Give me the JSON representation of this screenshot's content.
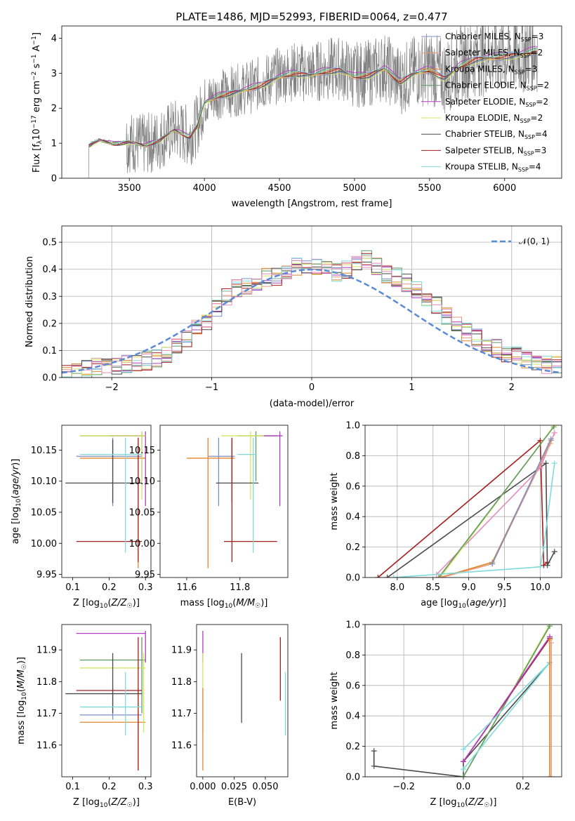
{
  "figure_title": "PLATE=1486, MJD=52993, FIBERID=0064, z=0.477",
  "model_colors": {
    "Chabrier MILES": "#7b8fc6",
    "Salpeter MILES": "#e99a7f",
    "Kroupa MILES": "#e0862c",
    "Chabrier ELODIE": "#5e9a62",
    "Salpeter ELODIE": "#b23cc0",
    "Kroupa ELODIE": "#d7e363",
    "Chabrier STELIB": "#4a4a4a",
    "Salpeter STELIB": "#a61d1d",
    "Kroupa STELIB": "#80dada",
    "pink": "#e58bbd",
    "data": "#808080",
    "normal": "#5b8ad6"
  },
  "chart_data": [
    {
      "id": "spectrum",
      "type": "line",
      "title": "PLATE=1486, MJD=52993, FIBERID=0064, z=0.477",
      "xlabel": "wavelength [Angstrom, rest frame]",
      "ylabel": "Flux [f_λ 10^-17 erg cm^-2 s^-1 A^-1]",
      "xlim": [
        3050,
        6380
      ],
      "ylim": [
        0,
        4.35
      ],
      "xticks": [
        3500,
        4000,
        4500,
        5000,
        5500,
        6000
      ],
      "yticks": [
        0,
        1,
        2,
        3,
        4
      ],
      "legend_position": "top-right",
      "continuum": {
        "x": [
          3200,
          3230,
          3300,
          3400,
          3500,
          3600,
          3700,
          3800,
          3900,
          3950,
          4000,
          4100,
          4200,
          4300,
          4400,
          4500,
          4600,
          4700,
          4800,
          4900,
          5000,
          5100,
          5200,
          5300,
          5400,
          5500,
          5600,
          5700,
          5800,
          5900,
          6000,
          6100,
          6200
        ],
        "y": [
          0,
          0.95,
          1.1,
          1.0,
          1.05,
          0.95,
          1.1,
          1.4,
          1.2,
          1.5,
          2.2,
          2.4,
          2.5,
          2.6,
          2.75,
          2.95,
          3.05,
          3.0,
          3.1,
          3.15,
          2.95,
          3.0,
          3.2,
          2.8,
          3.05,
          3.15,
          2.9,
          3.25,
          3.45,
          3.5,
          3.55,
          3.6,
          3.7
        ]
      },
      "series": [
        {
          "name": "Chabrier MILES, N_SSP=3"
        },
        {
          "name": "Salpeter MILES, N_SSP=2"
        },
        {
          "name": "Kroupa MILES, N_SSP=3"
        },
        {
          "name": "Chabrier ELODIE, N_SSP=2"
        },
        {
          "name": "Salpeter ELODIE, N_SSP=2"
        },
        {
          "name": "Kroupa ELODIE, N_SSP=2"
        },
        {
          "name": "Chabrier STELIB, N_SSP=4"
        },
        {
          "name": "Salpeter STELIB, N_SSP=3"
        },
        {
          "name": "Kroupa STELIB, N_SSP=4"
        }
      ]
    },
    {
      "id": "residuals",
      "type": "line",
      "xlabel": "(data-model)/error",
      "ylabel": "Normed distribution",
      "xlim": [
        -2.5,
        2.5
      ],
      "ylim": [
        0,
        0.56
      ],
      "xticks": [
        -2,
        -1,
        0,
        1,
        2
      ],
      "yticks": [
        0.0,
        0.1,
        0.2,
        0.3,
        0.4,
        0.5
      ],
      "legend_position": "top-right",
      "normal_curve": {
        "name": "N(0,1)",
        "mean": 0,
        "sd": 1
      },
      "bin_edges_start": -2.5,
      "bin_width": 0.1,
      "histogram_base": [
        0.01,
        0.02,
        0.03,
        0.04,
        0.04,
        0.04,
        0.05,
        0.05,
        0.06,
        0.07,
        0.08,
        0.11,
        0.14,
        0.18,
        0.21,
        0.26,
        0.3,
        0.33,
        0.34,
        0.35,
        0.37,
        0.37,
        0.38,
        0.41,
        0.41,
        0.41,
        0.4,
        0.39,
        0.4,
        0.42,
        0.44,
        0.41,
        0.38,
        0.37,
        0.35,
        0.33,
        0.3,
        0.27,
        0.23,
        0.2,
        0.17,
        0.15,
        0.13,
        0.11,
        0.09,
        0.08,
        0.07,
        0.06,
        0.05,
        0.05
      ]
    },
    {
      "id": "age-vs-Z",
      "type": "scatter",
      "xlabel": "Z [log10(Z/Z☉)]",
      "ylabel": "age  [log10(age/yr)]",
      "xlim": [
        0.07,
        0.315
      ],
      "ylim": [
        9.945,
        10.19
      ],
      "xticks": [
        0.1,
        0.2,
        0.3
      ],
      "yticks": [
        9.95,
        10.0,
        10.05,
        10.1,
        10.15
      ],
      "points": [
        {
          "model": "Chabrier MILES",
          "x": 0.21,
          "y": 10.14,
          "xerr": [
            0.11,
            0.29
          ],
          "yerr": [
            10.06,
            10.17
          ]
        },
        {
          "model": "Kroupa MILES",
          "x": 0.28,
          "y": 10.137,
          "xerr": [
            0.12,
            0.3
          ],
          "yerr": [
            9.96,
            10.17
          ]
        },
        {
          "model": "Chabrier ELODIE",
          "x": 0.29,
          "y": 10.173,
          "xerr": [
            0.12,
            0.3
          ],
          "yerr": [
            10.1,
            10.18
          ]
        },
        {
          "model": "Salpeter ELODIE",
          "x": 0.3,
          "y": 10.173,
          "xerr": [
            0.2,
            0.3
          ],
          "yerr": [
            10.06,
            10.18
          ]
        },
        {
          "model": "Kroupa ELODIE",
          "x": 0.29,
          "y": 10.173,
          "xerr": [
            0.12,
            0.3
          ],
          "yerr": [
            10.07,
            10.18
          ]
        },
        {
          "model": "Chabrier STELIB",
          "x": 0.21,
          "y": 10.097,
          "xerr": [
            0.08,
            0.29
          ],
          "yerr": [
            10.065,
            10.167
          ]
        },
        {
          "model": "Salpeter STELIB",
          "x": 0.28,
          "y": 10.003,
          "xerr": [
            0.11,
            0.29
          ],
          "yerr": [
            9.97,
            10.17
          ]
        },
        {
          "model": "Kroupa STELIB",
          "x": 0.245,
          "y": 10.143,
          "xerr": [
            0.12,
            0.29
          ],
          "yerr": [
            9.985,
            10.17
          ]
        }
      ]
    },
    {
      "id": "age-vs-mass",
      "type": "scatter",
      "xlabel": "mass [log10(M/M☉)]",
      "ylabel": "",
      "xlim": [
        11.5,
        11.98
      ],
      "ylim": [
        9.945,
        10.19
      ],
      "xticks": [
        11.6,
        11.8
      ],
      "yticks": [
        9.95,
        10.0,
        10.05,
        10.1,
        10.15
      ],
      "points": [
        {
          "model": "Chabrier MILES",
          "x": 11.72,
          "y": 10.14,
          "xerr": [
            11.68,
            11.78
          ],
          "yerr": [
            10.06,
            10.17
          ]
        },
        {
          "model": "Kroupa MILES",
          "x": 11.68,
          "y": 10.137,
          "xerr": [
            11.6,
            11.78
          ],
          "yerr": [
            9.96,
            10.17
          ]
        },
        {
          "model": "Chabrier ELODIE",
          "x": 11.86,
          "y": 10.173,
          "xerr": [
            11.79,
            11.94
          ],
          "yerr": [
            10.1,
            10.18
          ]
        },
        {
          "model": "Salpeter ELODIE",
          "x": 11.95,
          "y": 10.173,
          "xerr": [
            11.88,
            11.96
          ],
          "yerr": [
            10.06,
            10.18
          ]
        },
        {
          "model": "Kroupa ELODIE",
          "x": 11.84,
          "y": 10.173,
          "xerr": [
            11.73,
            11.89
          ],
          "yerr": [
            10.07,
            10.18
          ]
        },
        {
          "model": "Chabrier STELIB",
          "x": 11.77,
          "y": 10.097,
          "xerr": [
            11.71,
            11.87
          ],
          "yerr": [
            10.065,
            10.167
          ]
        },
        {
          "model": "Salpeter STELIB",
          "x": 11.77,
          "y": 10.003,
          "xerr": [
            11.74,
            11.94
          ],
          "yerr": [
            9.97,
            10.17
          ]
        },
        {
          "model": "Kroupa STELIB",
          "x": 11.85,
          "y": 10.143,
          "xerr": [
            11.79,
            11.86
          ],
          "yerr": [
            9.985,
            10.17
          ]
        }
      ]
    },
    {
      "id": "massweight-vs-age",
      "type": "line",
      "xlabel": "age  [log10(age/yr)]",
      "ylabel": "mass weight",
      "xlim": [
        7.55,
        10.3
      ],
      "ylim": [
        0,
        1.0
      ],
      "xticks": [
        8.0,
        8.5,
        9.0,
        9.5,
        10.0
      ],
      "yticks": [
        0.0,
        0.2,
        0.4,
        0.6,
        0.8,
        1.0
      ],
      "series": [
        {
          "model": "Salpeter STELIB",
          "x": [
            7.73,
            10.0,
            10.05,
            10.1
          ],
          "y": [
            0.0,
            0.9,
            0.08,
            0.1
          ]
        },
        {
          "model": "Chabrier STELIB",
          "x": [
            7.86,
            10.08,
            10.1,
            10.2
          ],
          "y": [
            0.0,
            0.75,
            0.08,
            0.17
          ]
        },
        {
          "model": "pink",
          "x": [
            8.55,
            10.0,
            10.2
          ],
          "y": [
            0.02,
            0.72,
            0.95
          ]
        },
        {
          "model": "Kroupa ELODIE",
          "x": [
            8.6,
            10.2
          ],
          "y": [
            0.0,
            1.0
          ]
        },
        {
          "model": "Chabrier ELODIE",
          "x": [
            8.58,
            10.19
          ],
          "y": [
            0.0,
            0.99
          ]
        },
        {
          "model": "Kroupa MILES",
          "x": [
            8.6,
            9.33,
            10.15
          ],
          "y": [
            0.0,
            0.1,
            0.9
          ]
        },
        {
          "model": "Salpeter MILES",
          "x": [
            8.62,
            9.33,
            10.14
          ],
          "y": [
            0.0,
            0.09,
            0.88
          ]
        },
        {
          "model": "Chabrier MILES",
          "x": [
            9.33,
            10.15
          ],
          "y": [
            0.09,
            0.91
          ]
        },
        {
          "model": "Kroupa STELIB",
          "x": [
            7.95,
            10.0,
            10.05,
            10.2
          ],
          "y": [
            0.0,
            0.07,
            0.2,
            0.75
          ]
        }
      ]
    },
    {
      "id": "mass-vs-Z",
      "type": "scatter",
      "xlabel": "Z [log10(Z/Z☉)]",
      "ylabel": "mass [log10(M/M☉)]",
      "xlim": [
        0.07,
        0.315
      ],
      "ylim": [
        11.5,
        11.98
      ],
      "xticks": [
        0.1,
        0.2,
        0.3
      ],
      "yticks": [
        11.6,
        11.7,
        11.8,
        11.9
      ],
      "points": [
        {
          "model": "Chabrier MILES",
          "x": 0.21,
          "y": 11.695,
          "xerr": [
            0.12,
            0.29
          ],
          "yerr": [
            11.68,
            11.78
          ]
        },
        {
          "model": "Kroupa MILES",
          "x": 0.28,
          "y": 11.672,
          "xerr": [
            0.12,
            0.3
          ],
          "yerr": [
            11.52,
            11.78
          ]
        },
        {
          "model": "Chabrier ELODIE",
          "x": 0.29,
          "y": 11.868,
          "xerr": [
            0.12,
            0.3
          ],
          "yerr": [
            11.7,
            11.94
          ]
        },
        {
          "model": "Salpeter ELODIE",
          "x": 0.3,
          "y": 11.952,
          "xerr": [
            0.11,
            0.3
          ],
          "yerr": [
            11.86,
            11.96
          ]
        },
        {
          "model": "Kroupa ELODIE",
          "x": 0.295,
          "y": 11.843,
          "xerr": [
            0.12,
            0.3
          ],
          "yerr": [
            11.64,
            11.89
          ]
        },
        {
          "model": "Chabrier STELIB",
          "x": 0.21,
          "y": 11.762,
          "xerr": [
            0.08,
            0.29
          ],
          "yerr": [
            11.7,
            11.89
          ]
        },
        {
          "model": "Salpeter STELIB",
          "x": 0.28,
          "y": 11.772,
          "xerr": [
            0.11,
            0.29
          ],
          "yerr": [
            11.52,
            11.94
          ]
        },
        {
          "model": "Kroupa STELIB",
          "x": 0.245,
          "y": 11.72,
          "xerr": [
            0.12,
            0.29
          ],
          "yerr": [
            11.63,
            11.83
          ]
        }
      ]
    },
    {
      "id": "mass-vs-ebv",
      "type": "scatter",
      "xlabel": "E(B-V)",
      "ylabel": "",
      "xlim": [
        -0.005,
        0.068
      ],
      "ylim": [
        11.5,
        11.98
      ],
      "xticks": [
        0.0,
        0.025,
        0.05
      ],
      "yticks": [
        11.6,
        11.7,
        11.8,
        11.9
      ],
      "points": [
        {
          "model": "Salpeter ELODIE",
          "x": 0.0,
          "y": 11.952,
          "yerr": [
            11.86,
            11.96
          ]
        },
        {
          "model": "Kroupa ELODIE",
          "x": 0.0,
          "y": 11.843,
          "yerr": [
            11.64,
            11.89
          ]
        },
        {
          "model": "Kroupa MILES",
          "x": 0.0,
          "y": 11.672,
          "yerr": [
            11.52,
            11.78
          ]
        },
        {
          "model": "Chabrier STELIB",
          "x": 0.031,
          "y": 11.762,
          "yerr": [
            11.67,
            11.89
          ]
        },
        {
          "model": "Salpeter STELIB",
          "x": 0.062,
          "y": 11.772,
          "yerr": [
            11.74,
            11.94
          ]
        },
        {
          "model": "Kroupa STELIB",
          "x": 0.066,
          "y": 11.72,
          "yerr": [
            11.63,
            11.83
          ]
        }
      ]
    },
    {
      "id": "massweight-vs-Z",
      "type": "line",
      "xlabel": "Z [log10(Z/Z☉)]",
      "ylabel": "mass weight",
      "xlim": [
        -0.33,
        0.33
      ],
      "ylim": [
        0,
        1.0
      ],
      "xticks": [
        -0.2,
        0.0,
        0.2
      ],
      "yticks": [
        0.0,
        0.2,
        0.4,
        0.6,
        0.8,
        1.0
      ],
      "series": [
        {
          "model": "Chabrier STELIB",
          "x": [
            -0.3,
            -0.3,
            0.0,
            0.0,
            0.29
          ],
          "y": [
            0.17,
            0.07,
            0.0,
            0.1,
            0.75
          ]
        },
        {
          "model": "Kroupa ELODIE",
          "x": [
            0.0,
            0.29
          ],
          "y": [
            0.0,
            1.0
          ]
        },
        {
          "model": "Chabrier ELODIE",
          "x": [
            0.0,
            0.29
          ],
          "y": [
            0.0,
            0.99
          ]
        },
        {
          "model": "Salpeter STELIB",
          "x": [
            0.0,
            0.29
          ],
          "y": [
            0.1,
            0.91
          ]
        },
        {
          "model": "Salpeter ELODIE",
          "x": [
            0.0,
            0.29
          ],
          "y": [
            0.1,
            0.92
          ]
        },
        {
          "model": "Kroupa STELIB",
          "x": [
            0.0,
            0.29,
            0.0
          ],
          "y": [
            0.18,
            0.75,
            0.05
          ]
        },
        {
          "model": "Kroupa MILES",
          "x": [
            0.29,
            0.29
          ],
          "y": [
            0.0,
            0.9
          ]
        },
        {
          "model": "Salpeter MILES",
          "x": [
            0.295,
            0.295
          ],
          "y": [
            0.0,
            0.88
          ]
        }
      ]
    }
  ],
  "labels": {
    "spec_ylabel_main": "Flux [",
    "normal_label": "𝒩(0, 1)"
  }
}
